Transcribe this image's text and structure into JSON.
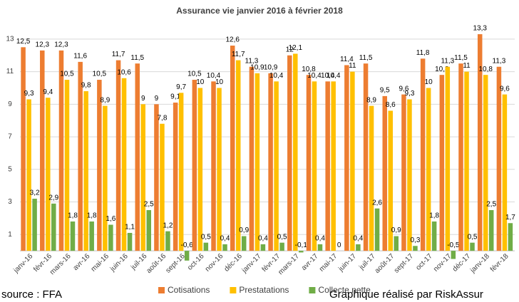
{
  "chart_data": {
    "type": "bar",
    "title": "Assurance vie janvier 2016 à février 2018",
    "categories": [
      "janv-16",
      "févr-16",
      "mars-16",
      "avr-16",
      "mai-16",
      "juin-16",
      "juil-16",
      "août-16",
      "sept-16",
      "oct-16",
      "nov-16",
      "déc-16",
      "janv-17",
      "févr-17",
      "mars-17",
      "avr-17",
      "mai-17",
      "juin-17",
      "juil-17",
      "août-17",
      "sept-17",
      "oct-17",
      "nov-17",
      "déc-17",
      "janv-18",
      "févr-18"
    ],
    "series": [
      {
        "name": "Cotisations",
        "color": "#ed7d31",
        "values": [
          12.5,
          12.3,
          12.3,
          11.6,
          10.5,
          11.7,
          11.5,
          9,
          9.1,
          10.5,
          10.4,
          12.6,
          11.3,
          10.9,
          12,
          10.8,
          10.4,
          11.4,
          11.5,
          9.5,
          9.6,
          11.8,
          10.8,
          11.5,
          13.3,
          11.3
        ],
        "value_labels": [
          "12,5",
          "12,3",
          "12,3",
          "11,6",
          "10,5",
          "11,7",
          "11,5",
          "9",
          "9,1",
          "10,5",
          "10,4",
          "12,6",
          "11,3",
          "10,9",
          "12",
          "10,8",
          "10,4",
          "11,4",
          "11,5",
          "9,5",
          "9,6",
          "11,8",
          "10,8",
          "11,5",
          "13,3",
          "11,3"
        ]
      },
      {
        "name": "Prestatations",
        "color": "#ffc000",
        "values": [
          9.3,
          9.4,
          10.5,
          9.8,
          8.9,
          10.6,
          9,
          7.8,
          9.7,
          10,
          10,
          11.7,
          10.9,
          10.4,
          12.1,
          10.4,
          10.4,
          11,
          8.9,
          8.6,
          9.3,
          10,
          11.3,
          11,
          10.8,
          9.6
        ],
        "value_labels": [
          "9,3",
          "9,4",
          "10,5",
          "9,8",
          "8,9",
          "10,6",
          "9",
          "7,8",
          "9,7",
          "10",
          "10",
          "11,7",
          "10,9",
          "10,4",
          "12,1",
          "10,4",
          "10,4",
          "11",
          "8,9",
          "8,6",
          "9,3",
          "10",
          "11,3",
          "11",
          "10,8",
          "9,6"
        ]
      },
      {
        "name": "Collecte nette",
        "color": "#70ad47",
        "values": [
          3.2,
          2.9,
          1.8,
          1.8,
          1.6,
          1.1,
          2.5,
          1.2,
          -0.6,
          0.5,
          0.4,
          0.9,
          0.4,
          0.5,
          -0.1,
          0.4,
          0,
          0.4,
          2.6,
          0.9,
          0.3,
          1.8,
          -0.5,
          0.5,
          2.5,
          1.7
        ],
        "value_labels": [
          "3,2",
          "2,9",
          "1,8",
          "1,8",
          "1,6",
          "1,1",
          "2,5",
          "1,2",
          "-0,6",
          "0,5",
          "0,4",
          "0,9",
          "0,4",
          "0,5",
          "-0,1",
          "0,4",
          "0",
          "0,4",
          "2,6",
          "0,9",
          "0,3",
          "1,8",
          "-0,5",
          "0,5",
          "2,5",
          "1,7"
        ]
      }
    ],
    "ylim": [
      -1,
      14
    ],
    "yticks": [
      1,
      3,
      5,
      7,
      9,
      11,
      13
    ],
    "grid": true,
    "source": "source : FFA",
    "credit": "Graphique réalisé par RiskAssur"
  }
}
